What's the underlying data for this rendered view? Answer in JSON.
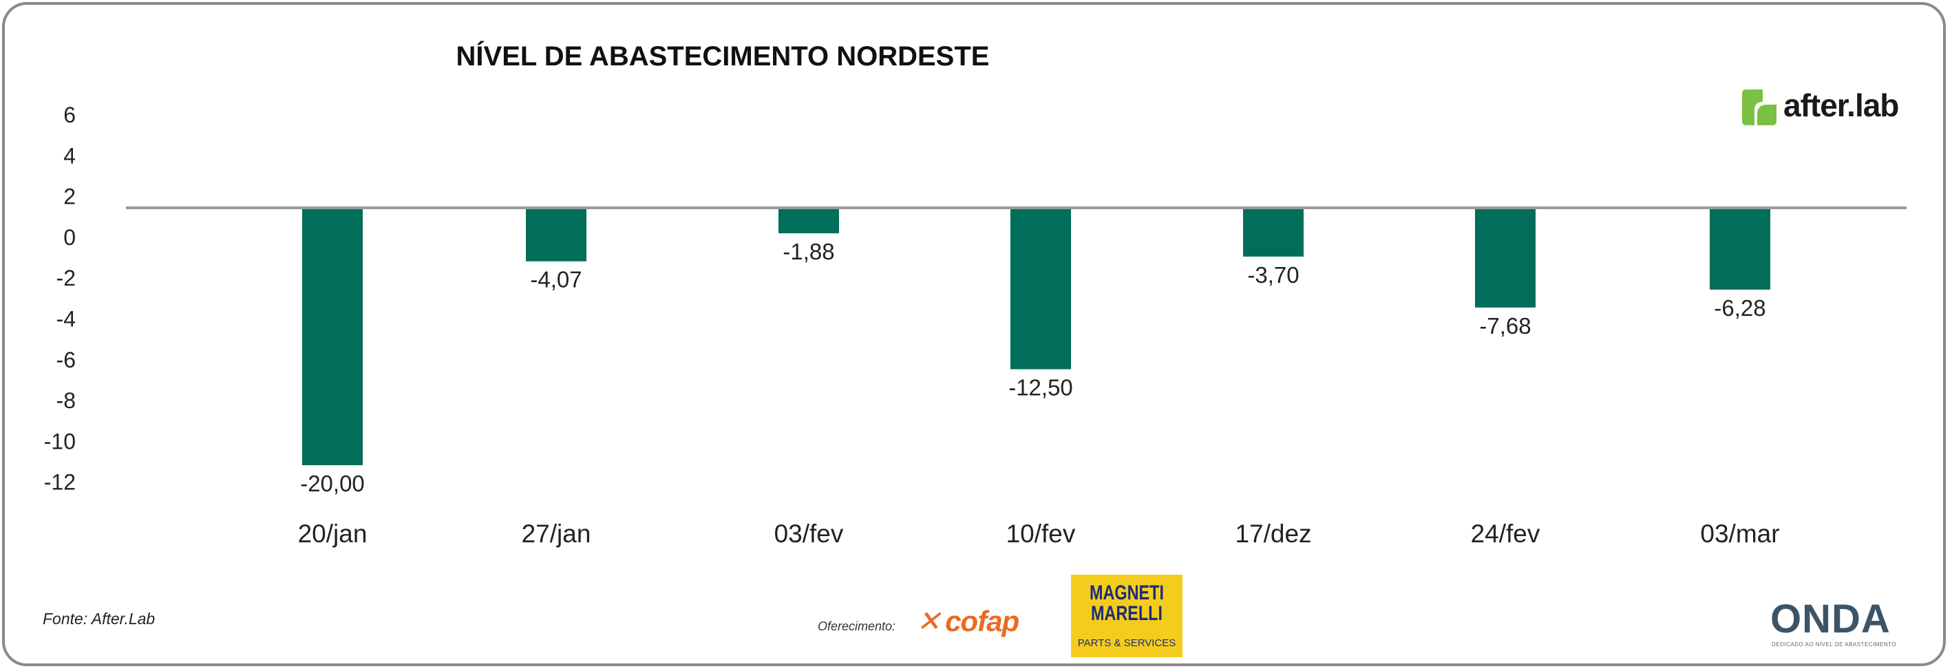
{
  "title": "NÍVEL DE ABASTECIMENTO NORDESTE",
  "source": "Fonte: After.Lab",
  "sponsor_label": "Oferecimento:",
  "logos": {
    "afterlab": "after.lab",
    "cofop": "cofap",
    "magneti_line1": "MAGNETI",
    "magneti_line2": "MARELLI",
    "magneti_sub": "PARTS & SERVICES",
    "onda": "ONDA",
    "onda_sub": "DEDICADO AO NÍVEL DE ABASTECIMENTO"
  },
  "colors": {
    "bar": "#006e5a",
    "baseline": "#9a9a9a",
    "afterlab_green": "#7ac143",
    "cofop_orange": "#ea6a24",
    "magneti_yellow": "#f4cd1c"
  },
  "chart_data": {
    "type": "bar",
    "title": "NÍVEL DE ABASTECIMENTO NORDESTE",
    "categories": [
      "20/jan",
      "27/jan",
      "03/fev",
      "10/fev",
      "17/dez",
      "24/fev",
      "03/mar"
    ],
    "values": [
      -20.0,
      -4.07,
      -1.88,
      -12.5,
      -3.7,
      -7.68,
      -6.28
    ],
    "data_labels": [
      "-20,00",
      "-4,07",
      "-1,88",
      "-12,50",
      "-3,70",
      "-7,68",
      "-6,28"
    ],
    "yticks": [
      6,
      4,
      2,
      0,
      -2,
      -4,
      -6,
      -8,
      -10,
      -12
    ],
    "ytick_labels": [
      "6",
      "4",
      "2",
      "0",
      "-2",
      "-4",
      "-6",
      "-8",
      "-10",
      "-12"
    ],
    "ylim": [
      -12,
      6
    ],
    "xlabel": "",
    "ylabel": "",
    "grid": false,
    "legend": "none"
  }
}
